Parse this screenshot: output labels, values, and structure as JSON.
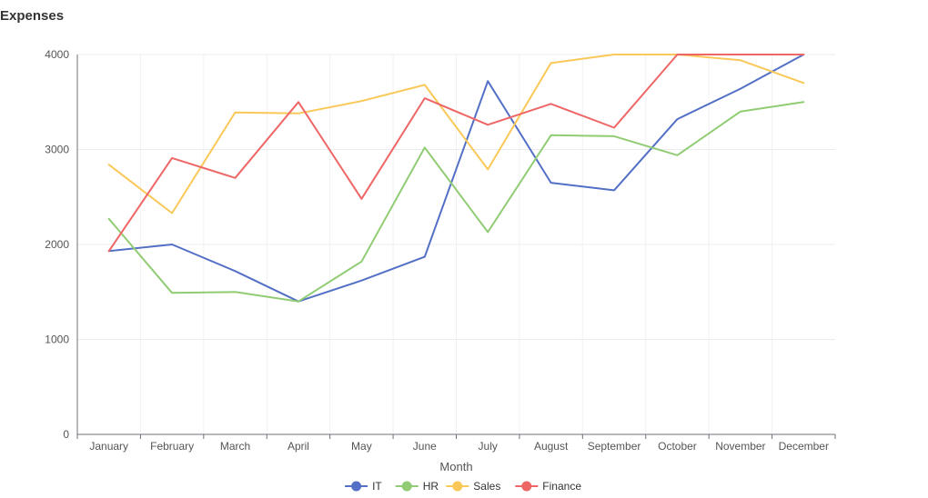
{
  "chart_data": {
    "type": "line",
    "title": "Expenses",
    "xlabel": "Month",
    "ylabel": "",
    "ylim": [
      0,
      4000
    ],
    "yticks": [
      0,
      1000,
      2000,
      3000,
      4000
    ],
    "grid": true,
    "legend_position": "bottom",
    "categories": [
      "January",
      "February",
      "March",
      "April",
      "May",
      "June",
      "July",
      "August",
      "September",
      "October",
      "November",
      "December"
    ],
    "series": [
      {
        "name": "IT",
        "color": "#5470c6",
        "values": [
          1930,
          2000,
          1720,
          1400,
          1620,
          1870,
          3720,
          2650,
          2570,
          3320,
          3640,
          4000
        ]
      },
      {
        "name": "HR",
        "color": "#91cc75",
        "values": [
          2270,
          1490,
          1500,
          1400,
          1820,
          3020,
          2130,
          3150,
          3140,
          2940,
          3400,
          3500
        ]
      },
      {
        "name": "Sales",
        "color": "#fac858",
        "values": [
          2840,
          2330,
          3390,
          3380,
          3510,
          3680,
          2790,
          3910,
          4000,
          4000,
          3940,
          3700
        ]
      },
      {
        "name": "Finance",
        "color": "#ee6666",
        "values": [
          1930,
          2910,
          2700,
          3500,
          2480,
          3540,
          3260,
          3480,
          3230,
          4000,
          4000,
          4000
        ]
      }
    ]
  }
}
